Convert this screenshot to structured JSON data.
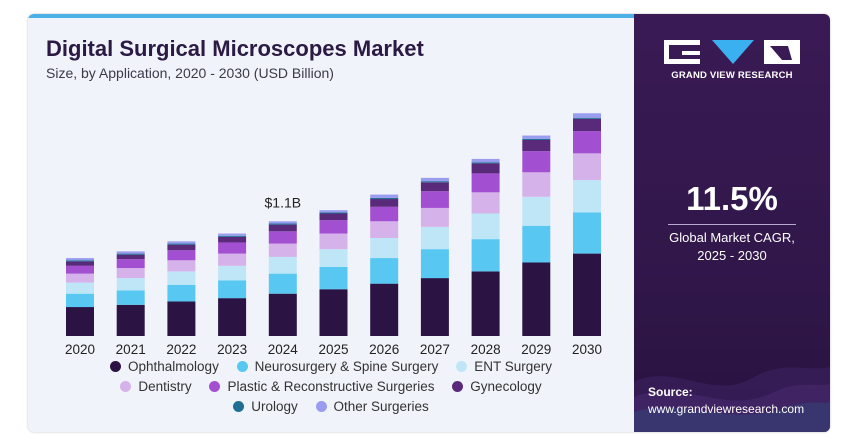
{
  "header": {
    "title": "Digital Surgical Microscopes Market",
    "subtitle": "Size, by Application, 2020 - 2030 (USD Billion)"
  },
  "chart_data": {
    "type": "bar",
    "stacked": true,
    "title": "Digital Surgical Microscopes Market",
    "subtitle": "Size, by Application, 2020 - 2030 (USD Billion)",
    "categories": [
      "2020",
      "2021",
      "2022",
      "2023",
      "2024",
      "2025",
      "2026",
      "2027",
      "2028",
      "2029",
      "2030"
    ],
    "series": [
      {
        "name": "Ophthalmology",
        "color": "#2b1344",
        "values": [
          0.26,
          0.28,
          0.31,
          0.34,
          0.38,
          0.42,
          0.47,
          0.52,
          0.58,
          0.66,
          0.74
        ]
      },
      {
        "name": "Neurosurgery & Spine Surgery",
        "color": "#58c8f2",
        "values": [
          0.12,
          0.13,
          0.15,
          0.16,
          0.18,
          0.2,
          0.23,
          0.26,
          0.29,
          0.33,
          0.37
        ]
      },
      {
        "name": "ENT Surgery",
        "color": "#bfe6f7",
        "values": [
          0.1,
          0.11,
          0.12,
          0.13,
          0.15,
          0.16,
          0.18,
          0.2,
          0.23,
          0.26,
          0.29
        ]
      },
      {
        "name": "Dentistry",
        "color": "#d6b2ea",
        "values": [
          0.08,
          0.09,
          0.1,
          0.11,
          0.12,
          0.14,
          0.15,
          0.17,
          0.19,
          0.22,
          0.24
        ]
      },
      {
        "name": "Plastic & Reconstructive Surgeries",
        "color": "#a34fd2",
        "values": [
          0.07,
          0.08,
          0.09,
          0.1,
          0.11,
          0.12,
          0.13,
          0.15,
          0.17,
          0.19,
          0.2
        ]
      },
      {
        "name": "Gynecology",
        "color": "#5a2a7a",
        "values": [
          0.04,
          0.04,
          0.05,
          0.05,
          0.06,
          0.06,
          0.07,
          0.08,
          0.09,
          0.1,
          0.11
        ]
      },
      {
        "name": "Urology",
        "color": "#1f6f94",
        "values": [
          0.01,
          0.01,
          0.01,
          0.01,
          0.01,
          0.01,
          0.01,
          0.01,
          0.01,
          0.01,
          0.01
        ]
      },
      {
        "name": "Other Surgeries",
        "color": "#9a9cf0",
        "values": [
          0.02,
          0.02,
          0.02,
          0.02,
          0.02,
          0.02,
          0.03,
          0.03,
          0.03,
          0.03,
          0.04
        ]
      }
    ],
    "annotations": [
      {
        "category": "2024",
        "text": "$1.1B"
      }
    ],
    "ylim": [
      0,
      2.2
    ],
    "grid": false,
    "legend": "bottom"
  },
  "sidebar": {
    "brand": "GRAND VIEW RESEARCH",
    "cagr_value": "11.5%",
    "cagr_label": "Global Market CAGR,",
    "cagr_period": "2025 - 2030",
    "source_label": "Source:",
    "source_url": "www.grandviewresearch.com"
  }
}
